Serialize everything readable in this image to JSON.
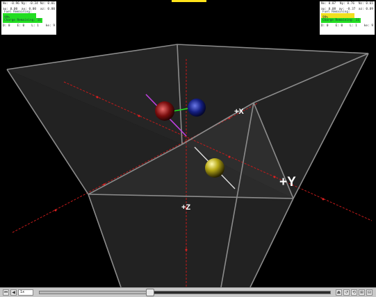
{
  "hud_left": {
    "row1": [
      "Nx: -0.96",
      "Ny: -0.34",
      "Nz: 0.01"
    ],
    "row2": [
      "ax: 0.00",
      "ay: 0.00",
      "az: 0.00"
    ],
    "bar1": "Fuel Remaining: 99%",
    "bar2": "Charge Remaining: 11",
    "row3": [
      "D: 0",
      "E: 0",
      "L: 1",
      "ke: 9"
    ],
    "bar1_color": "#22dd22",
    "bar2_color": "#22dd22"
  },
  "hud_right": {
    "row1": [
      "Nx: 0.07",
      "Ny: 0.76",
      "Nz: 0.65"
    ],
    "row2": [
      "ax: 0.08",
      "ay: -0.37",
      "az: 0.09"
    ],
    "bar1": "Fuel Remaining: 99%",
    "bar2": "Charge Remaining: 11",
    "row3": [
      "D: 0",
      "E: 0",
      "L: 1",
      "ke: 9"
    ],
    "bar1_color": "#f0e020",
    "bar2_color": "#22dd22"
  },
  "scene": {
    "axis_labels": {
      "x": "+X",
      "y": "+Y",
      "z": "+Z"
    },
    "box_color": "#7a7a7a",
    "axis_color": "#c41a1a",
    "objects": [
      {
        "name": "red-ship",
        "color": "#8a1010"
      },
      {
        "name": "blue-ship",
        "color": "#14208a"
      },
      {
        "name": "yellow-ball",
        "color": "#c8c020"
      }
    ]
  },
  "controls": {
    "frame_value": "1x",
    "buttons_left": [
      "⏮",
      "◀"
    ],
    "buttons_right": [
      "⏏",
      "↺",
      "⟲",
      "⊞",
      "⊟"
    ],
    "progress": 0.38
  }
}
